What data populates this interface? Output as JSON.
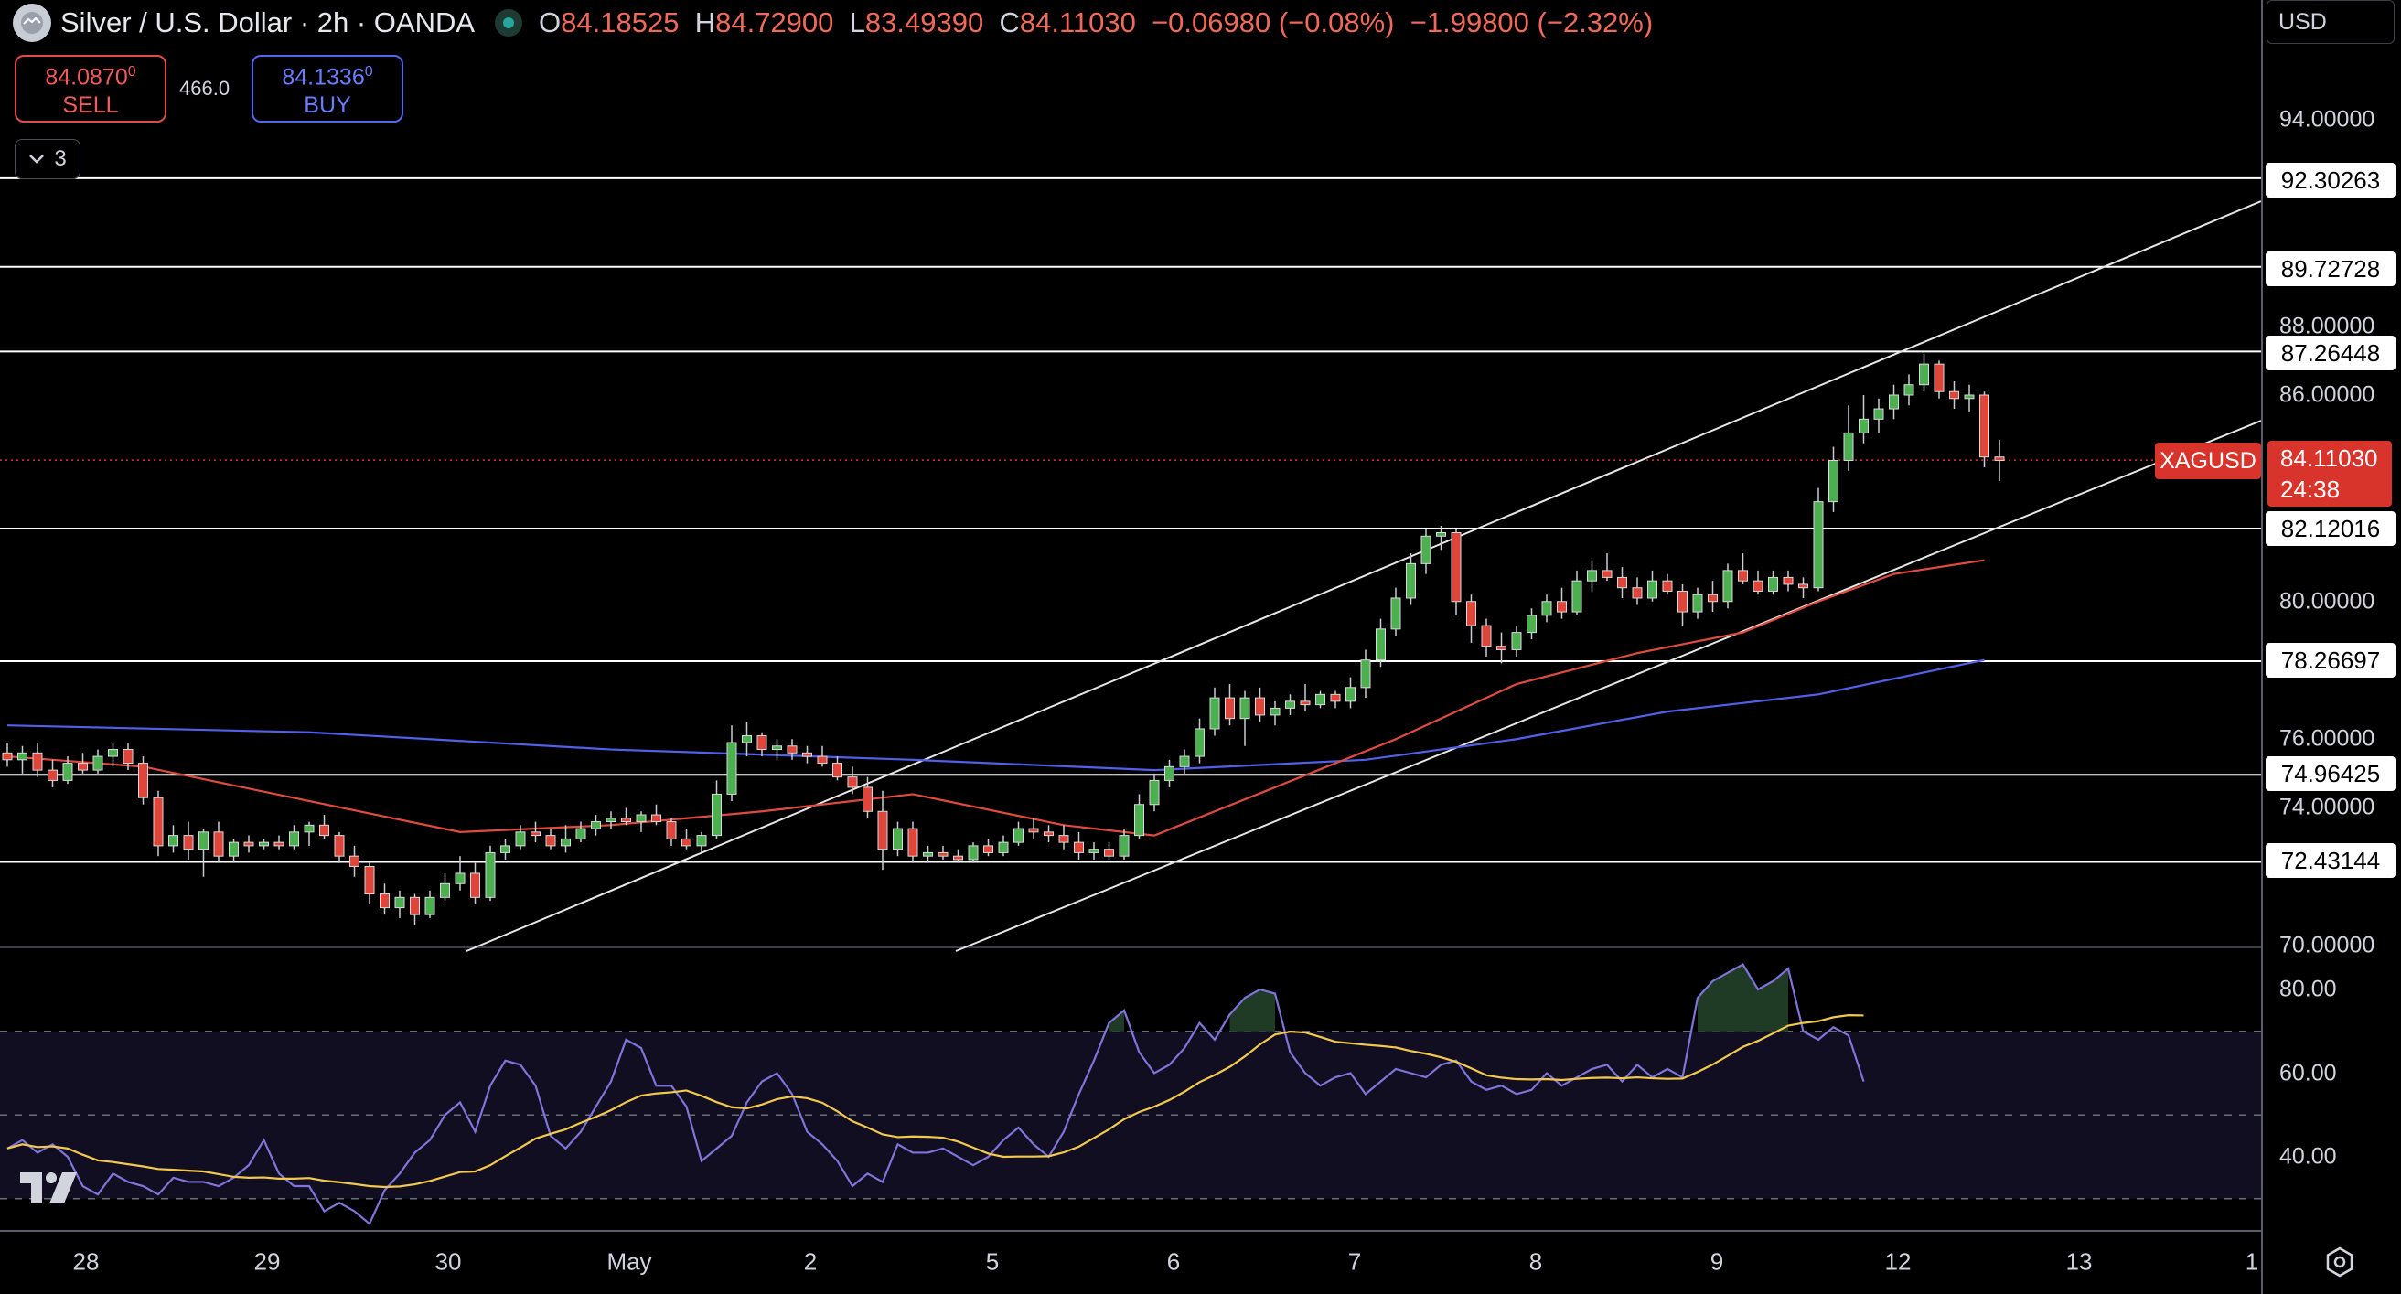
{
  "header": {
    "title": "Silver / U.S. Dollar · 2h · OANDA",
    "open_label": "O",
    "open": "84.18525",
    "high_label": "H",
    "high": "84.72900",
    "low_label": "L",
    "low": "83.49390",
    "close_label": "C",
    "close": "84.11030",
    "change": "−0.06980 (−0.08%)",
    "change2": "−1.99800 (−2.32%)"
  },
  "trade": {
    "sell_price": "84.0870",
    "sell_sup": "0",
    "sell_label": "SELL",
    "spread": "466.0",
    "buy_price": "84.1336",
    "buy_sup": "0",
    "buy_label": "BUY"
  },
  "indicators_count": "3",
  "currency": "USD",
  "price_ticks": [
    "94.00000",
    "88.00000",
    "86.00000",
    "80.00000",
    "76.00000",
    "74.00000",
    "70.00000"
  ],
  "levels": [
    "92.30263",
    "89.72728",
    "87.26448",
    "82.12016",
    "78.26697",
    "74.96425",
    "72.43144"
  ],
  "symbol_tag": "XAGUSD",
  "last_price": "84.11030",
  "countdown": "24:38",
  "rsi_ticks": [
    "80.00",
    "60.00",
    "40.00"
  ],
  "dates": [
    "28",
    "29",
    "30",
    "May",
    "2",
    "5",
    "6",
    "7",
    "8",
    "9",
    "12",
    "13",
    "1"
  ],
  "colors": {
    "up": "#4caf50",
    "down": "#e0453a",
    "ma_red": "#e04b3f",
    "ma_blue": "#5060e8",
    "rsi": "#7e74d9",
    "rsi_ma": "#f2c94c",
    "level": "#ffffff",
    "last_price": "#d9342b"
  },
  "chart_data": {
    "type": "candlestick",
    "x_labels": [
      "28",
      "29",
      "30",
      "May",
      "2",
      "5",
      "6",
      "7",
      "8",
      "9",
      "12",
      "13"
    ],
    "candles": [
      [
        75.6,
        75.9,
        75.2,
        75.4
      ],
      [
        75.4,
        75.8,
        75.0,
        75.6
      ],
      [
        75.6,
        75.9,
        74.9,
        75.1
      ],
      [
        75.1,
        75.4,
        74.6,
        74.8
      ],
      [
        74.8,
        75.5,
        74.7,
        75.3
      ],
      [
        75.3,
        75.6,
        75.0,
        75.1
      ],
      [
        75.1,
        75.7,
        75.0,
        75.5
      ],
      [
        75.5,
        75.9,
        75.2,
        75.7
      ],
      [
        75.7,
        75.9,
        75.1,
        75.3
      ],
      [
        75.3,
        75.5,
        74.1,
        74.3
      ],
      [
        74.3,
        74.5,
        72.6,
        72.9
      ],
      [
        72.9,
        73.5,
        72.7,
        73.2
      ],
      [
        73.2,
        73.6,
        72.5,
        72.8
      ],
      [
        72.8,
        73.4,
        72.0,
        73.3
      ],
      [
        73.3,
        73.6,
        72.4,
        72.6
      ],
      [
        72.6,
        73.1,
        72.4,
        73.0
      ],
      [
        73.0,
        73.2,
        72.7,
        72.9
      ],
      [
        72.9,
        73.1,
        72.8,
        73.0
      ],
      [
        73.0,
        73.2,
        72.8,
        72.9
      ],
      [
        72.9,
        73.5,
        72.8,
        73.3
      ],
      [
        73.3,
        73.6,
        72.9,
        73.5
      ],
      [
        73.5,
        73.8,
        73.1,
        73.2
      ],
      [
        73.2,
        73.3,
        72.4,
        72.6
      ],
      [
        72.6,
        72.9,
        72.0,
        72.3
      ],
      [
        72.3,
        72.4,
        71.2,
        71.5
      ],
      [
        71.5,
        71.8,
        70.9,
        71.1
      ],
      [
        71.1,
        71.6,
        70.8,
        71.4
      ],
      [
        71.4,
        71.5,
        70.6,
        70.9
      ],
      [
        70.9,
        71.6,
        70.8,
        71.4
      ],
      [
        71.4,
        72.1,
        71.3,
        71.8
      ],
      [
        71.8,
        72.6,
        71.6,
        72.1
      ],
      [
        72.1,
        72.4,
        71.2,
        71.4
      ],
      [
        71.4,
        72.9,
        71.3,
        72.7
      ],
      [
        72.7,
        73.1,
        72.5,
        72.9
      ],
      [
        72.9,
        73.5,
        72.8,
        73.3
      ],
      [
        73.3,
        73.6,
        73.0,
        73.2
      ],
      [
        73.2,
        73.4,
        72.8,
        72.9
      ],
      [
        72.9,
        73.5,
        72.7,
        73.1
      ],
      [
        73.1,
        73.6,
        73.0,
        73.4
      ],
      [
        73.4,
        73.8,
        73.2,
        73.6
      ],
      [
        73.6,
        73.9,
        73.4,
        73.7
      ],
      [
        73.7,
        74.0,
        73.5,
        73.6
      ],
      [
        73.6,
        73.9,
        73.3,
        73.8
      ],
      [
        73.8,
        74.1,
        73.5,
        73.6
      ],
      [
        73.6,
        73.7,
        72.9,
        73.1
      ],
      [
        73.1,
        73.4,
        72.8,
        72.9
      ],
      [
        72.9,
        73.3,
        72.7,
        73.2
      ],
      [
        73.2,
        74.8,
        73.1,
        74.4
      ],
      [
        74.4,
        76.4,
        74.2,
        75.9
      ],
      [
        75.9,
        76.5,
        75.5,
        76.1
      ],
      [
        76.1,
        76.2,
        75.5,
        75.7
      ],
      [
        75.7,
        76.0,
        75.4,
        75.8
      ],
      [
        75.8,
        76.0,
        75.4,
        75.6
      ],
      [
        75.6,
        75.8,
        75.3,
        75.5
      ],
      [
        75.5,
        75.8,
        75.2,
        75.3
      ],
      [
        75.3,
        75.5,
        74.8,
        74.9
      ],
      [
        74.9,
        75.2,
        74.4,
        74.6
      ],
      [
        74.6,
        74.9,
        73.7,
        73.9
      ],
      [
        73.9,
        74.5,
        72.2,
        72.8
      ],
      [
        72.8,
        73.6,
        72.6,
        73.4
      ],
      [
        73.4,
        73.6,
        72.4,
        72.6
      ],
      [
        72.6,
        72.9,
        72.4,
        72.7
      ],
      [
        72.7,
        72.9,
        72.5,
        72.6
      ],
      [
        72.6,
        72.8,
        72.4,
        72.5
      ],
      [
        72.5,
        73.0,
        72.4,
        72.9
      ],
      [
        72.9,
        73.1,
        72.6,
        72.7
      ],
      [
        72.7,
        73.2,
        72.6,
        73.0
      ],
      [
        73.0,
        73.6,
        72.9,
        73.4
      ],
      [
        73.4,
        73.7,
        73.1,
        73.3
      ],
      [
        73.3,
        73.5,
        73.0,
        73.2
      ],
      [
        73.2,
        73.5,
        72.8,
        73.0
      ],
      [
        73.0,
        73.3,
        72.5,
        72.7
      ],
      [
        72.7,
        73.0,
        72.5,
        72.8
      ],
      [
        72.8,
        73.0,
        72.5,
        72.6
      ],
      [
        72.6,
        73.4,
        72.5,
        73.2
      ],
      [
        73.2,
        74.4,
        73.1,
        74.1
      ],
      [
        74.1,
        75.0,
        73.9,
        74.8
      ],
      [
        74.8,
        75.4,
        74.6,
        75.2
      ],
      [
        75.2,
        75.7,
        75.0,
        75.5
      ],
      [
        75.5,
        76.6,
        75.3,
        76.3
      ],
      [
        76.3,
        77.5,
        76.1,
        77.2
      ],
      [
        77.2,
        77.6,
        76.4,
        76.6
      ],
      [
        76.6,
        77.4,
        75.8,
        77.2
      ],
      [
        77.2,
        77.5,
        76.5,
        76.7
      ],
      [
        76.7,
        77.1,
        76.4,
        76.9
      ],
      [
        76.9,
        77.3,
        76.7,
        77.1
      ],
      [
        77.1,
        77.6,
        76.8,
        77.0
      ],
      [
        77.0,
        77.4,
        76.9,
        77.3
      ],
      [
        77.3,
        77.4,
        76.9,
        77.1
      ],
      [
        77.1,
        77.8,
        76.9,
        77.5
      ],
      [
        77.5,
        78.6,
        77.2,
        78.3
      ],
      [
        78.3,
        79.5,
        78.1,
        79.2
      ],
      [
        79.2,
        80.4,
        79.0,
        80.1
      ],
      [
        80.1,
        81.4,
        79.9,
        81.1
      ],
      [
        81.1,
        82.1,
        80.8,
        81.9
      ],
      [
        81.9,
        82.2,
        81.5,
        82.0
      ],
      [
        82.0,
        82.1,
        79.6,
        80.0
      ],
      [
        80.0,
        80.2,
        78.8,
        79.3
      ],
      [
        79.3,
        79.5,
        78.4,
        78.7
      ],
      [
        78.7,
        79.1,
        78.2,
        78.6
      ],
      [
        78.6,
        79.3,
        78.4,
        79.1
      ],
      [
        79.1,
        79.8,
        78.9,
        79.6
      ],
      [
        79.6,
        80.2,
        79.4,
        80.0
      ],
      [
        80.0,
        80.4,
        79.5,
        79.7
      ],
      [
        79.7,
        80.9,
        79.6,
        80.6
      ],
      [
        80.6,
        81.2,
        80.3,
        80.9
      ],
      [
        80.9,
        81.4,
        80.6,
        80.7
      ],
      [
        80.7,
        81.0,
        80.1,
        80.4
      ],
      [
        80.4,
        80.7,
        79.9,
        80.1
      ],
      [
        80.1,
        80.9,
        80.0,
        80.6
      ],
      [
        80.6,
        80.8,
        80.2,
        80.3
      ],
      [
        80.3,
        80.5,
        79.3,
        79.7
      ],
      [
        79.7,
        80.4,
        79.5,
        80.2
      ],
      [
        80.2,
        80.6,
        79.7,
        80.0
      ],
      [
        80.0,
        81.1,
        79.8,
        80.9
      ],
      [
        80.9,
        81.4,
        80.5,
        80.6
      ],
      [
        80.6,
        80.9,
        80.2,
        80.3
      ],
      [
        80.3,
        80.9,
        80.2,
        80.7
      ],
      [
        80.7,
        80.9,
        80.3,
        80.5
      ],
      [
        80.5,
        80.7,
        80.1,
        80.4
      ],
      [
        80.4,
        83.3,
        80.3,
        82.9
      ],
      [
        82.9,
        84.5,
        82.6,
        84.1
      ],
      [
        84.1,
        85.7,
        83.8,
        84.9
      ],
      [
        84.9,
        86.0,
        84.6,
        85.3
      ],
      [
        85.3,
        85.9,
        84.9,
        85.6
      ],
      [
        85.6,
        86.3,
        85.3,
        86.0
      ],
      [
        86.0,
        86.6,
        85.7,
        86.3
      ],
      [
        86.3,
        87.2,
        86.1,
        86.9
      ],
      [
        86.9,
        87.0,
        85.9,
        86.1
      ],
      [
        86.1,
        86.4,
        85.6,
        85.9
      ],
      [
        85.9,
        86.3,
        85.5,
        86.0
      ],
      [
        86.0,
        86.1,
        83.9,
        84.2
      ],
      [
        84.2,
        84.7,
        83.5,
        84.1
      ]
    ],
    "ma_red": [
      [
        0,
        75.5
      ],
      [
        9,
        75.2
      ],
      [
        20,
        74.2
      ],
      [
        30,
        73.3
      ],
      [
        40,
        73.5
      ],
      [
        50,
        73.9
      ],
      [
        60,
        74.4
      ],
      [
        70,
        73.5
      ],
      [
        76,
        73.2
      ],
      [
        84,
        74.6
      ],
      [
        92,
        76.0
      ],
      [
        100,
        77.6
      ],
      [
        108,
        78.5
      ],
      [
        115,
        79.1
      ],
      [
        120,
        80.0
      ],
      [
        125,
        80.8
      ],
      [
        131,
        81.2
      ]
    ],
    "ma_blue": [
      [
        0,
        76.4
      ],
      [
        20,
        76.2
      ],
      [
        40,
        75.7
      ],
      [
        60,
        75.4
      ],
      [
        76,
        75.1
      ],
      [
        90,
        75.4
      ],
      [
        100,
        76.0
      ],
      [
        110,
        76.8
      ],
      [
        120,
        77.3
      ],
      [
        131,
        78.3
      ]
    ],
    "rsi": [
      42,
      44,
      41,
      43,
      40,
      33,
      31,
      36,
      34,
      33,
      31,
      35,
      34,
      34,
      33,
      35,
      38,
      44,
      36,
      33,
      33,
      27,
      29,
      27,
      24,
      32,
      36,
      41,
      44,
      50,
      53,
      46,
      57,
      63,
      62,
      57,
      45,
      42,
      46,
      52,
      58,
      68,
      66,
      57,
      57,
      52,
      39,
      42,
      45,
      53,
      58,
      60,
      55,
      46,
      43,
      39,
      33,
      36,
      34,
      43,
      41,
      41,
      42,
      40,
      38,
      40,
      44,
      47,
      43,
      40,
      46,
      55,
      63,
      72,
      75,
      65,
      60,
      62,
      66,
      72,
      68,
      74,
      78,
      80,
      79,
      65,
      60,
      57,
      59,
      60,
      55,
      58,
      61,
      60,
      59,
      62,
      63,
      58,
      56,
      57,
      55,
      56,
      60,
      57,
      59,
      61,
      62,
      58,
      62,
      59,
      61,
      59,
      78,
      82,
      84,
      86,
      80,
      82,
      85,
      70,
      68,
      71,
      69,
      58
    ],
    "rsi_ylim": [
      20,
      90
    ],
    "ylim": [
      69.5,
      96
    ]
  }
}
